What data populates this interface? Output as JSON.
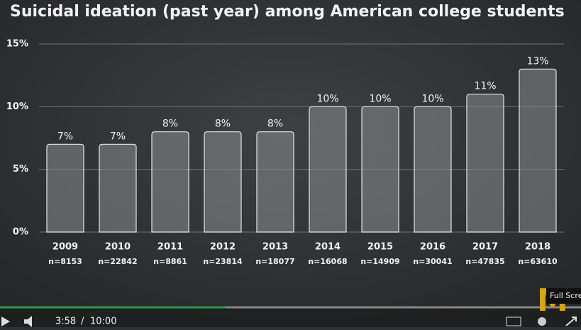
{
  "chart_data": {
    "type": "bar",
    "title": "Suicidal ideation (past year) among American college students",
    "categories": [
      "2009",
      "2010",
      "2011",
      "2012",
      "2013",
      "2014",
      "2015",
      "2016",
      "2017",
      "2018"
    ],
    "sample_sizes": [
      "n=8153",
      "n=22842",
      "n=8861",
      "n=23814",
      "n=18077",
      "n=16068",
      "n=14909",
      "n=30041",
      "n=47835",
      "n=63610"
    ],
    "values": [
      7,
      7,
      8,
      8,
      8,
      10,
      10,
      10,
      11,
      13
    ],
    "value_labels": [
      "7%",
      "7%",
      "8%",
      "8%",
      "8%",
      "10%",
      "10%",
      "10%",
      "11%",
      "13%"
    ],
    "color": "#8a8d90",
    "ylim": [
      0,
      15
    ],
    "yticks": [
      {
        "value": 0,
        "label": "0%"
      },
      {
        "value": 5,
        "label": "5%"
      },
      {
        "value": 10,
        "label": "10%"
      },
      {
        "value": 15,
        "label": "15%"
      }
    ],
    "grid": true
  },
  "player": {
    "current_time": "3:58",
    "separator": "/",
    "duration": "10:00",
    "tooltip": "Full Scre",
    "logo": "M"
  }
}
